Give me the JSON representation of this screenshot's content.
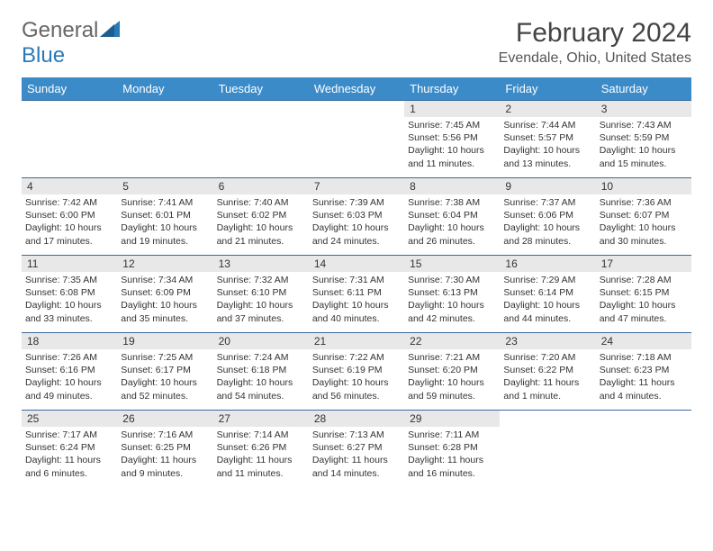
{
  "brand": {
    "part1": "General",
    "part2": "Blue"
  },
  "title": "February 2024",
  "location": "Evendale, Ohio, United States",
  "colors": {
    "header_bg": "#3b8bc9",
    "row_border": "#3b6a9a",
    "daynum_bg": "#e8e8e8",
    "brand_blue": "#2a7ab8"
  },
  "weekdays": [
    "Sunday",
    "Monday",
    "Tuesday",
    "Wednesday",
    "Thursday",
    "Friday",
    "Saturday"
  ],
  "layout": {
    "rows": 5,
    "cols": 7,
    "first_day_col": 4,
    "last_day": 29
  },
  "days": {
    "1": {
      "sunrise": "7:45 AM",
      "sunset": "5:56 PM",
      "daylight": "10 hours and 11 minutes."
    },
    "2": {
      "sunrise": "7:44 AM",
      "sunset": "5:57 PM",
      "daylight": "10 hours and 13 minutes."
    },
    "3": {
      "sunrise": "7:43 AM",
      "sunset": "5:59 PM",
      "daylight": "10 hours and 15 minutes."
    },
    "4": {
      "sunrise": "7:42 AM",
      "sunset": "6:00 PM",
      "daylight": "10 hours and 17 minutes."
    },
    "5": {
      "sunrise": "7:41 AM",
      "sunset": "6:01 PM",
      "daylight": "10 hours and 19 minutes."
    },
    "6": {
      "sunrise": "7:40 AM",
      "sunset": "6:02 PM",
      "daylight": "10 hours and 21 minutes."
    },
    "7": {
      "sunrise": "7:39 AM",
      "sunset": "6:03 PM",
      "daylight": "10 hours and 24 minutes."
    },
    "8": {
      "sunrise": "7:38 AM",
      "sunset": "6:04 PM",
      "daylight": "10 hours and 26 minutes."
    },
    "9": {
      "sunrise": "7:37 AM",
      "sunset": "6:06 PM",
      "daylight": "10 hours and 28 minutes."
    },
    "10": {
      "sunrise": "7:36 AM",
      "sunset": "6:07 PM",
      "daylight": "10 hours and 30 minutes."
    },
    "11": {
      "sunrise": "7:35 AM",
      "sunset": "6:08 PM",
      "daylight": "10 hours and 33 minutes."
    },
    "12": {
      "sunrise": "7:34 AM",
      "sunset": "6:09 PM",
      "daylight": "10 hours and 35 minutes."
    },
    "13": {
      "sunrise": "7:32 AM",
      "sunset": "6:10 PM",
      "daylight": "10 hours and 37 minutes."
    },
    "14": {
      "sunrise": "7:31 AM",
      "sunset": "6:11 PM",
      "daylight": "10 hours and 40 minutes."
    },
    "15": {
      "sunrise": "7:30 AM",
      "sunset": "6:13 PM",
      "daylight": "10 hours and 42 minutes."
    },
    "16": {
      "sunrise": "7:29 AM",
      "sunset": "6:14 PM",
      "daylight": "10 hours and 44 minutes."
    },
    "17": {
      "sunrise": "7:28 AM",
      "sunset": "6:15 PM",
      "daylight": "10 hours and 47 minutes."
    },
    "18": {
      "sunrise": "7:26 AM",
      "sunset": "6:16 PM",
      "daylight": "10 hours and 49 minutes."
    },
    "19": {
      "sunrise": "7:25 AM",
      "sunset": "6:17 PM",
      "daylight": "10 hours and 52 minutes."
    },
    "20": {
      "sunrise": "7:24 AM",
      "sunset": "6:18 PM",
      "daylight": "10 hours and 54 minutes."
    },
    "21": {
      "sunrise": "7:22 AM",
      "sunset": "6:19 PM",
      "daylight": "10 hours and 56 minutes."
    },
    "22": {
      "sunrise": "7:21 AM",
      "sunset": "6:20 PM",
      "daylight": "10 hours and 59 minutes."
    },
    "23": {
      "sunrise": "7:20 AM",
      "sunset": "6:22 PM",
      "daylight": "11 hours and 1 minute."
    },
    "24": {
      "sunrise": "7:18 AM",
      "sunset": "6:23 PM",
      "daylight": "11 hours and 4 minutes."
    },
    "25": {
      "sunrise": "7:17 AM",
      "sunset": "6:24 PM",
      "daylight": "11 hours and 6 minutes."
    },
    "26": {
      "sunrise": "7:16 AM",
      "sunset": "6:25 PM",
      "daylight": "11 hours and 9 minutes."
    },
    "27": {
      "sunrise": "7:14 AM",
      "sunset": "6:26 PM",
      "daylight": "11 hours and 11 minutes."
    },
    "28": {
      "sunrise": "7:13 AM",
      "sunset": "6:27 PM",
      "daylight": "11 hours and 14 minutes."
    },
    "29": {
      "sunrise": "7:11 AM",
      "sunset": "6:28 PM",
      "daylight": "11 hours and 16 minutes."
    }
  },
  "labels": {
    "sunrise": "Sunrise: ",
    "sunset": "Sunset: ",
    "daylight": "Daylight: "
  }
}
